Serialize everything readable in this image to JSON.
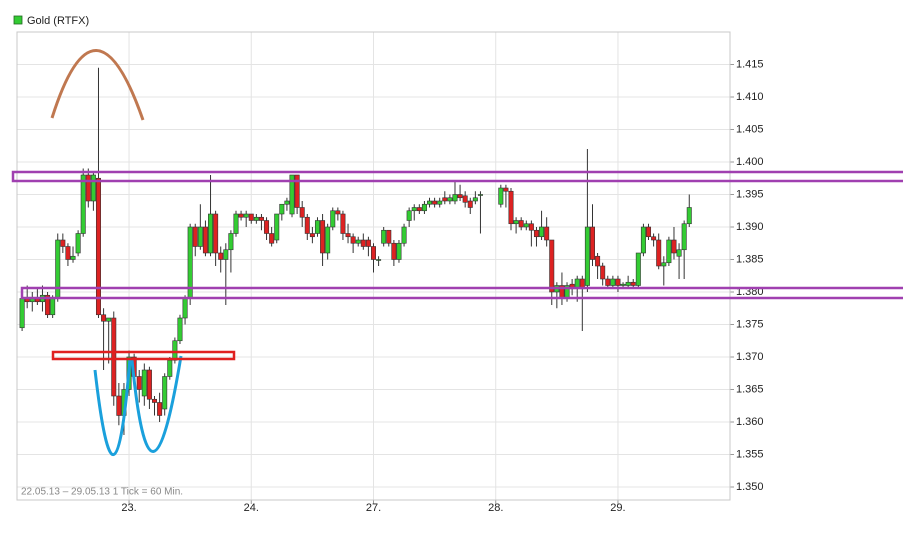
{
  "chart_data": {
    "type": "candlestick",
    "footnote": "22.05.13 – 29.05.13   1 Tick = 60 Min.",
    "xlim": [
      2,
      142
    ],
    "xticks": [
      {
        "value": 24,
        "label": "23."
      },
      {
        "value": 48,
        "label": "24."
      },
      {
        "value": 72,
        "label": "27."
      },
      {
        "value": 96,
        "label": "28."
      },
      {
        "value": 120,
        "label": "29."
      }
    ],
    "ylim": [
      1.348,
      1.42
    ],
    "yticks": [
      {
        "value": 1.35,
        "label": "1.350"
      },
      {
        "value": 1.355,
        "label": "1.355"
      },
      {
        "value": 1.36,
        "label": "1.360"
      },
      {
        "value": 1.365,
        "label": "1.365"
      },
      {
        "value": 1.37,
        "label": "1.370"
      },
      {
        "value": 1.375,
        "label": "1.375"
      },
      {
        "value": 1.38,
        "label": "1.380"
      },
      {
        "value": 1.385,
        "label": "1.385"
      },
      {
        "value": 1.39,
        "label": "1.390"
      },
      {
        "value": 1.395,
        "label": "1.395"
      },
      {
        "value": 1.4,
        "label": "1.400"
      },
      {
        "value": 1.405,
        "label": "1.405"
      },
      {
        "value": 1.41,
        "label": "1.410"
      },
      {
        "value": 1.415,
        "label": "1.415"
      }
    ],
    "grid": true,
    "x": [
      3,
      4,
      5,
      6,
      7,
      8,
      9,
      10,
      11,
      12,
      13,
      14,
      15,
      16,
      17,
      18,
      19,
      20,
      21,
      22,
      23,
      24,
      25,
      26,
      27,
      28,
      29,
      30,
      31,
      32,
      33,
      34,
      35,
      36,
      37,
      38,
      39,
      40,
      41,
      42,
      43,
      44,
      45,
      46,
      47,
      48,
      49,
      50,
      51,
      52,
      53,
      54,
      55,
      56,
      57,
      58,
      59,
      60,
      61,
      62,
      63,
      64,
      65,
      66,
      67,
      68,
      69,
      70,
      71,
      72,
      73,
      74,
      75,
      76,
      77,
      78,
      79,
      80,
      81,
      82,
      83,
      84,
      85,
      86,
      87,
      88,
      89,
      90,
      91,
      92,
      93,
      97,
      98,
      99,
      100,
      101,
      102,
      103,
      104,
      105,
      106,
      107,
      108,
      109,
      110,
      111,
      112,
      113,
      114,
      115,
      116,
      117,
      118,
      119,
      120,
      121,
      122,
      123,
      124,
      125,
      126,
      127,
      128,
      129,
      130,
      131,
      132,
      133,
      134
    ],
    "series": [
      {
        "name": "Gold (RTFX)",
        "up_color": "#33cc33",
        "down_color": "#dd2222",
        "open": [
          1.3745,
          1.379,
          1.3785,
          1.379,
          1.3785,
          1.3795,
          1.3765,
          1.379,
          1.388,
          1.387,
          1.385,
          1.386,
          1.389,
          1.398,
          1.394,
          1.3975,
          1.3765,
          1.3755,
          1.376,
          1.364,
          1.361,
          1.365,
          1.37,
          1.367,
          1.364,
          1.368,
          1.3635,
          1.363,
          1.362,
          1.367,
          1.3695,
          1.3725,
          1.376,
          1.379,
          1.39,
          1.387,
          1.39,
          1.386,
          1.392,
          1.386,
          1.385,
          1.3865,
          1.389,
          1.392,
          1.3915,
          1.392,
          1.391,
          1.3915,
          1.391,
          1.389,
          1.388,
          1.392,
          1.3935,
          1.392,
          1.398,
          1.393,
          1.3915,
          1.389,
          1.389,
          1.391,
          1.386,
          1.39,
          1.3925,
          1.392,
          1.389,
          1.3885,
          1.3875,
          1.388,
          1.388,
          1.387,
          1.385,
          1.3875,
          1.3895,
          1.3875,
          1.385,
          1.3875,
          1.391,
          1.3925,
          1.393,
          1.3925,
          1.3935,
          1.394,
          1.3935,
          1.3945,
          1.394,
          1.394,
          1.395,
          1.3948,
          1.394,
          1.394,
          1.395,
          1.3935,
          1.396,
          1.3955,
          1.3905,
          1.391,
          1.39,
          1.3905,
          1.3895,
          1.3885,
          1.39,
          1.388,
          1.38,
          1.381,
          1.379,
          1.3812,
          1.3805,
          1.382,
          1.381,
          1.39,
          1.3855,
          1.384,
          1.382,
          1.381,
          1.382,
          1.381,
          1.381,
          1.3815,
          1.381,
          1.386,
          1.39,
          1.3885,
          1.388,
          1.384,
          1.3845,
          1.388,
          1.3855,
          1.3865,
          1.3905
        ],
        "high": [
          1.38,
          1.381,
          1.38,
          1.3805,
          1.381,
          1.38,
          1.3795,
          1.389,
          1.389,
          1.3875,
          1.387,
          1.3895,
          1.399,
          1.399,
          1.3985,
          1.4145,
          1.3775,
          1.376,
          1.377,
          1.366,
          1.366,
          1.371,
          1.3705,
          1.368,
          1.369,
          1.3685,
          1.364,
          1.3645,
          1.3675,
          1.37,
          1.373,
          1.3765,
          1.3795,
          1.3905,
          1.3905,
          1.3935,
          1.391,
          1.398,
          1.3925,
          1.387,
          1.3875,
          1.3895,
          1.3925,
          1.3925,
          1.3925,
          1.392,
          1.392,
          1.392,
          1.3915,
          1.39,
          1.392,
          1.3935,
          1.3945,
          1.398,
          1.398,
          1.394,
          1.392,
          1.39,
          1.3915,
          1.392,
          1.3905,
          1.393,
          1.393,
          1.3925,
          1.3905,
          1.389,
          1.3885,
          1.389,
          1.3885,
          1.3875,
          1.3855,
          1.39,
          1.3895,
          1.388,
          1.388,
          1.3905,
          1.393,
          1.3935,
          1.3935,
          1.394,
          1.3945,
          1.3945,
          1.3945,
          1.3955,
          1.395,
          1.397,
          1.3965,
          1.3955,
          1.3945,
          1.3955,
          1.3955,
          1.3965,
          1.3965,
          1.396,
          1.3915,
          1.3915,
          1.391,
          1.391,
          1.39,
          1.3925,
          1.3915,
          1.388,
          1.3815,
          1.383,
          1.3815,
          1.382,
          1.3825,
          1.3825,
          1.402,
          1.3935,
          1.386,
          1.3845,
          1.3825,
          1.3825,
          1.3825,
          1.3815,
          1.3825,
          1.382,
          1.386,
          1.3905,
          1.3905,
          1.389,
          1.389,
          1.3855,
          1.3885,
          1.39,
          1.3875,
          1.391,
          1.395
        ],
        "low": [
          1.374,
          1.3775,
          1.377,
          1.378,
          1.377,
          1.376,
          1.376,
          1.3785,
          1.386,
          1.384,
          1.3845,
          1.3855,
          1.3885,
          1.393,
          1.3925,
          1.376,
          1.368,
          1.369,
          1.3625,
          1.3595,
          1.358,
          1.364,
          1.366,
          1.363,
          1.3625,
          1.362,
          1.361,
          1.36,
          1.361,
          1.3665,
          1.369,
          1.372,
          1.375,
          1.378,
          1.3855,
          1.3865,
          1.3855,
          1.3855,
          1.384,
          1.383,
          1.378,
          1.383,
          1.3885,
          1.391,
          1.39,
          1.3905,
          1.3905,
          1.3895,
          1.388,
          1.387,
          1.3875,
          1.391,
          1.3925,
          1.3915,
          1.392,
          1.39,
          1.388,
          1.3875,
          1.3885,
          1.384,
          1.385,
          1.3895,
          1.391,
          1.388,
          1.3875,
          1.386,
          1.387,
          1.3865,
          1.3855,
          1.383,
          1.384,
          1.387,
          1.387,
          1.384,
          1.3845,
          1.387,
          1.39,
          1.391,
          1.392,
          1.392,
          1.393,
          1.393,
          1.393,
          1.3935,
          1.3935,
          1.3935,
          1.394,
          1.393,
          1.392,
          1.3935,
          1.389,
          1.393,
          1.393,
          1.3895,
          1.389,
          1.3895,
          1.3895,
          1.387,
          1.387,
          1.388,
          1.387,
          1.378,
          1.3775,
          1.378,
          1.3785,
          1.3795,
          1.3785,
          1.374,
          1.38,
          1.384,
          1.382,
          1.381,
          1.3805,
          1.3805,
          1.38,
          1.3805,
          1.3805,
          1.3805,
          1.3805,
          1.3855,
          1.388,
          1.387,
          1.3835,
          1.381,
          1.384,
          1.385,
          1.382,
          1.382,
          1.39
        ],
        "close": [
          1.379,
          1.3785,
          1.379,
          1.3785,
          1.3795,
          1.3765,
          1.379,
          1.388,
          1.387,
          1.385,
          1.3855,
          1.389,
          1.398,
          1.394,
          1.398,
          1.3765,
          1.3755,
          1.376,
          1.364,
          1.361,
          1.365,
          1.37,
          1.367,
          1.365,
          1.368,
          1.3635,
          1.363,
          1.361,
          1.367,
          1.3695,
          1.3725,
          1.376,
          1.379,
          1.39,
          1.387,
          1.39,
          1.386,
          1.392,
          1.386,
          1.385,
          1.3865,
          1.389,
          1.392,
          1.3915,
          1.392,
          1.391,
          1.3915,
          1.391,
          1.389,
          1.3875,
          1.392,
          1.3935,
          1.394,
          1.398,
          1.393,
          1.3915,
          1.389,
          1.3885,
          1.391,
          1.386,
          1.39,
          1.3925,
          1.392,
          1.389,
          1.3885,
          1.3875,
          1.388,
          1.387,
          1.387,
          1.385,
          1.385,
          1.3895,
          1.3875,
          1.385,
          1.3875,
          1.39,
          1.3925,
          1.393,
          1.3925,
          1.3935,
          1.394,
          1.3935,
          1.394,
          1.394,
          1.3945,
          1.395,
          1.3945,
          1.3938,
          1.393,
          1.3945,
          1.395,
          1.396,
          1.3955,
          1.3905,
          1.391,
          1.39,
          1.3905,
          1.3895,
          1.3885,
          1.39,
          1.388,
          1.38,
          1.381,
          1.379,
          1.381,
          1.3805,
          1.382,
          1.3805,
          1.39,
          1.385,
          1.384,
          1.382,
          1.381,
          1.382,
          1.381,
          1.3812,
          1.3815,
          1.381,
          1.386,
          1.39,
          1.3885,
          1.388,
          1.384,
          1.3845,
          1.388,
          1.386,
          1.3865,
          1.3905,
          1.393
        ]
      }
    ]
  }
}
